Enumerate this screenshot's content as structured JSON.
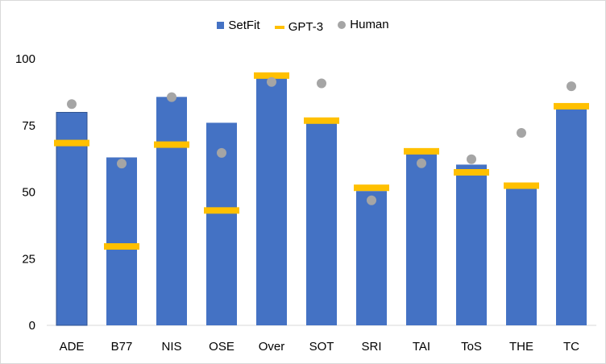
{
  "chart_data": {
    "type": "bar",
    "categories": [
      "ADE",
      "B77",
      "NIS",
      "OSE",
      "Over",
      "SOT",
      "SRI",
      "TAI",
      "ToS",
      "THE",
      "TC"
    ],
    "series": [
      {
        "name": "SetFit",
        "kind": "bar",
        "values": [
          79.9,
          63.0,
          85.7,
          76.0,
          93.6,
          76.6,
          50.4,
          64.8,
          60.3,
          51.9,
          81.2
        ]
      },
      {
        "name": "GPT-3",
        "kind": "marker",
        "values": [
          68.4,
          29.6,
          67.8,
          43.1,
          93.7,
          76.8,
          51.6,
          65.3,
          57.4,
          52.4,
          82.2
        ]
      },
      {
        "name": "Human",
        "kind": "dot",
        "values": [
          83.0,
          60.7,
          85.6,
          64.7,
          91.3,
          90.8,
          46.9,
          60.8,
          62.3,
          72.2,
          89.7
        ]
      }
    ],
    "yticks": [
      0,
      25,
      50,
      75,
      100
    ],
    "ylim": [
      0,
      100
    ],
    "title": "",
    "xlabel": "",
    "ylabel": "",
    "grid": false,
    "legend_position": "top-center",
    "colors": {
      "SetFit": "#4472C4",
      "GPT-3": "#FFC000",
      "Human": "#A5A5A5"
    }
  }
}
